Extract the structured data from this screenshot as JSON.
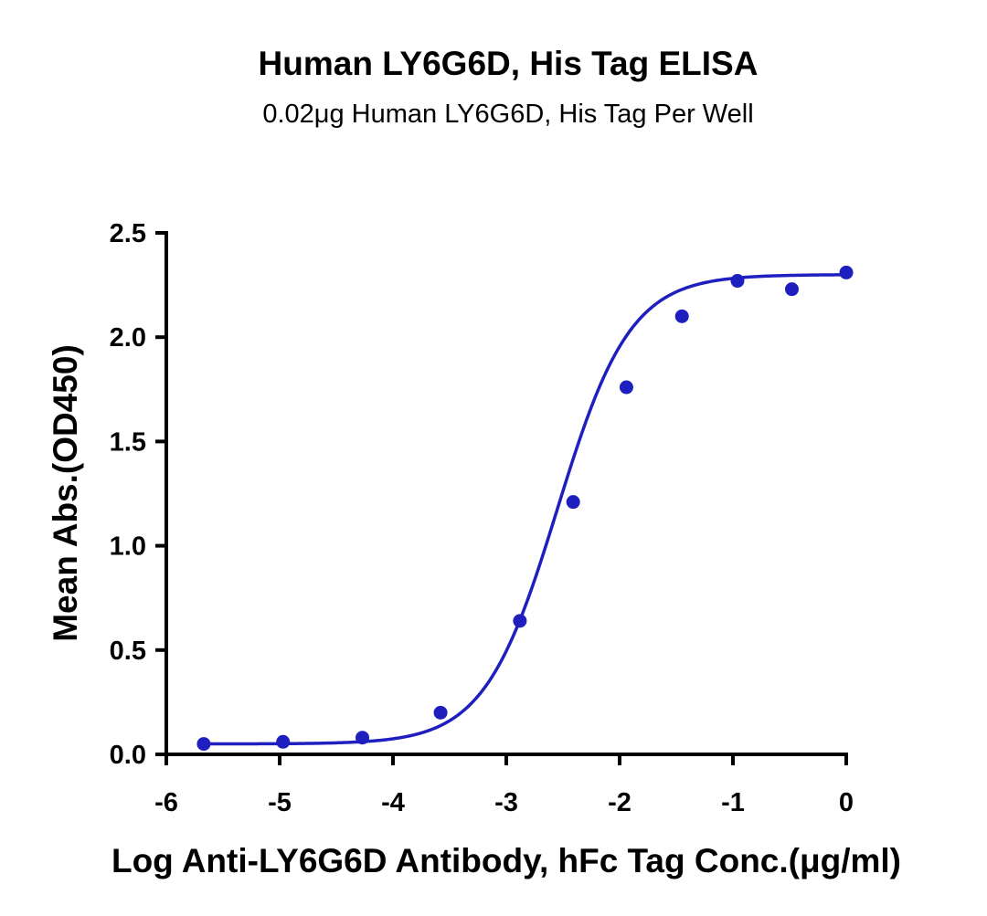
{
  "chart_data": {
    "type": "scatter",
    "title": "Human LY6G6D, His Tag ELISA",
    "subtitle": "0.02μg Human LY6G6D, His Tag Per Well",
    "xlabel": "Log Anti-LY6G6D Antibody, hFc Tag Conc.(μg/ml)",
    "ylabel": "Mean Abs.(OD450)",
    "xlim": [
      -6,
      0
    ],
    "ylim": [
      0,
      2.5
    ],
    "x_ticks": [
      "-6",
      "-5",
      "-4",
      "-3",
      "-2",
      "-1",
      "0"
    ],
    "y_ticks": [
      "0.0",
      "0.5",
      "1.0",
      "1.5",
      "2.0",
      "2.5"
    ],
    "grid": false,
    "color": "#1f1fbf",
    "series": [
      {
        "points": [
          {
            "x": -5.67,
            "y": 0.05
          },
          {
            "x": -4.97,
            "y": 0.06
          },
          {
            "x": -4.27,
            "y": 0.08
          },
          {
            "x": -3.58,
            "y": 0.2
          },
          {
            "x": -2.88,
            "y": 0.64
          },
          {
            "x": -2.41,
            "y": 1.21
          },
          {
            "x": -1.94,
            "y": 1.76
          },
          {
            "x": -1.45,
            "y": 2.1
          },
          {
            "x": -0.96,
            "y": 2.27
          },
          {
            "x": -0.48,
            "y": 2.23
          },
          {
            "x": 0.0,
            "y": 2.31
          }
        ],
        "fit": {
          "model": "4PL",
          "bottom": 0.05,
          "top": 2.3,
          "logEC50": -2.55,
          "hill": 1.35
        }
      }
    ]
  }
}
